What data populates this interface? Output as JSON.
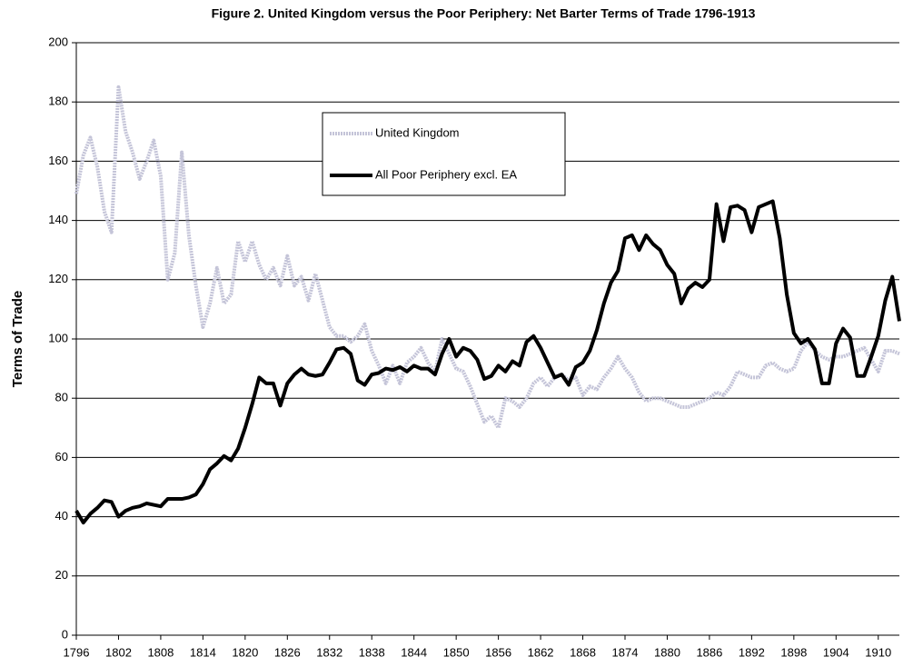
{
  "chart_data": {
    "type": "line",
    "title": "Figure 2. United Kingdom versus the Poor Periphery: Net Barter Terms of Trade 1796-1913",
    "y_label": "Terms of Trade",
    "x": [
      1796,
      1797,
      1798,
      1799,
      1800,
      1801,
      1802,
      1803,
      1804,
      1805,
      1806,
      1807,
      1808,
      1809,
      1810,
      1811,
      1812,
      1813,
      1814,
      1815,
      1816,
      1817,
      1818,
      1819,
      1820,
      1821,
      1822,
      1823,
      1824,
      1825,
      1826,
      1827,
      1828,
      1829,
      1830,
      1831,
      1832,
      1833,
      1834,
      1835,
      1836,
      1837,
      1838,
      1839,
      1840,
      1841,
      1842,
      1843,
      1844,
      1845,
      1846,
      1847,
      1848,
      1849,
      1850,
      1851,
      1852,
      1853,
      1854,
      1855,
      1856,
      1857,
      1858,
      1859,
      1860,
      1861,
      1862,
      1863,
      1864,
      1865,
      1866,
      1867,
      1868,
      1869,
      1870,
      1871,
      1872,
      1873,
      1874,
      1875,
      1876,
      1877,
      1878,
      1879,
      1880,
      1881,
      1882,
      1883,
      1884,
      1885,
      1886,
      1887,
      1888,
      1889,
      1890,
      1891,
      1892,
      1893,
      1894,
      1895,
      1896,
      1897,
      1898,
      1899,
      1900,
      1901,
      1902,
      1903,
      1904,
      1905,
      1906,
      1907,
      1908,
      1909,
      1910,
      1911,
      1912,
      1913
    ],
    "series": [
      {
        "name": "United Kingdom",
        "color": "#c4c4d8",
        "values": [
          149,
          162,
          168,
          158,
          143,
          136,
          185,
          170,
          163,
          154,
          160,
          167,
          155,
          120,
          129,
          163,
          135,
          118,
          104,
          112,
          124,
          112,
          115,
          133,
          126,
          133,
          125,
          120,
          124,
          118,
          128,
          118,
          121,
          113,
          122,
          113,
          104,
          101,
          101,
          99,
          101,
          105,
          96,
          91,
          85,
          91,
          85,
          92,
          94,
          97,
          92,
          89,
          100,
          95,
          90,
          89,
          84,
          78,
          72,
          74,
          70,
          80,
          79,
          77,
          80,
          85,
          87,
          84,
          87,
          88,
          86,
          87,
          81,
          84,
          83,
          87,
          90,
          94,
          90,
          87,
          82,
          79,
          80,
          80,
          79,
          78,
          77,
          77,
          78,
          79,
          80,
          82,
          81,
          84,
          89,
          88,
          87,
          87,
          91,
          92,
          90,
          89,
          90,
          96,
          99,
          96,
          94,
          93,
          94,
          94,
          95,
          96,
          97,
          93,
          89,
          96,
          96,
          95
        ]
      },
      {
        "name": "All Poor Periphery excl. EA",
        "color": "#000000",
        "values": [
          42,
          38,
          41,
          43,
          45.5,
          45,
          40,
          42,
          43,
          43.5,
          44.5,
          44,
          43.5,
          46,
          46,
          46,
          46.5,
          47.5,
          51,
          56,
          58,
          60.5,
          59,
          63,
          70,
          78,
          87,
          85,
          85,
          77.5,
          85,
          88,
          90,
          88,
          87.5,
          88,
          92,
          96.5,
          97,
          95,
          86,
          84.5,
          88,
          88.5,
          90,
          89.5,
          90.5,
          89,
          91,
          90,
          90,
          88,
          95,
          100,
          94,
          97,
          96,
          93,
          86.5,
          87.5,
          91,
          89,
          92.5,
          91,
          99,
          101,
          97,
          92,
          87,
          88,
          84.5,
          90.5,
          92,
          96,
          103,
          112,
          119,
          123,
          134,
          135,
          130,
          135,
          132,
          130,
          125,
          122,
          112,
          117,
          119,
          117.5,
          120,
          145.5,
          133,
          144.5,
          145,
          143.5,
          136,
          144.5,
          145.5,
          146.5,
          134,
          115,
          102,
          98.5,
          100,
          96.5,
          85,
          85,
          98.5,
          103.5,
          100.5,
          87.5,
          87.5,
          94,
          101,
          113,
          121,
          106
        ]
      }
    ],
    "xlim": [
      1796,
      1913
    ],
    "xticks": [
      1796,
      1802,
      1808,
      1814,
      1820,
      1826,
      1832,
      1838,
      1844,
      1850,
      1856,
      1862,
      1868,
      1874,
      1880,
      1886,
      1892,
      1898,
      1904,
      1910
    ],
    "ylim": [
      0,
      200
    ],
    "yticks": [
      0,
      20,
      40,
      60,
      80,
      100,
      120,
      140,
      160,
      180,
      200
    ],
    "grid": true
  }
}
